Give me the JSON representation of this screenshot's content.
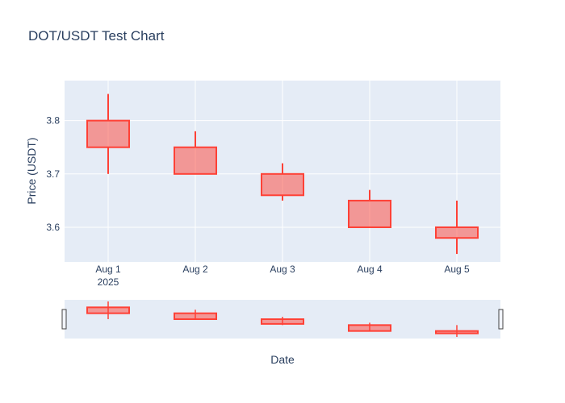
{
  "chart_data": {
    "type": "candlestick",
    "title": "DOT/USDT Test Chart",
    "xlabel": "Date",
    "ylabel": "Price (USDT)",
    "x_tick_labels": [
      "Aug 1",
      "Aug 2",
      "Aug 3",
      "Aug 4",
      "Aug 5"
    ],
    "x_year_label": "2025",
    "y_ticks": [
      "3.6",
      "3.7",
      "3.8"
    ],
    "ylim": [
      3.535,
      3.875
    ],
    "grid": true,
    "rangeslider": true,
    "candles": [
      {
        "date": "Aug 1",
        "open": 3.8,
        "high": 3.85,
        "low": 3.7,
        "close": 3.75
      },
      {
        "date": "Aug 2",
        "open": 3.75,
        "high": 3.78,
        "low": 3.7,
        "close": 3.7
      },
      {
        "date": "Aug 3",
        "open": 3.7,
        "high": 3.72,
        "low": 3.65,
        "close": 3.66
      },
      {
        "date": "Aug 4",
        "open": 3.65,
        "high": 3.67,
        "low": 3.6,
        "close": 3.6
      },
      {
        "date": "Aug 5",
        "open": 3.6,
        "high": 3.65,
        "low": 3.55,
        "close": 3.58
      }
    ],
    "colors": {
      "decreasing_line": "#ff4136",
      "decreasing_fill": "rgba(255,65,54,0.5)",
      "plot_bg": "#e5ecf6",
      "grid": "#ffffff",
      "text": "#2a3f5f"
    }
  }
}
